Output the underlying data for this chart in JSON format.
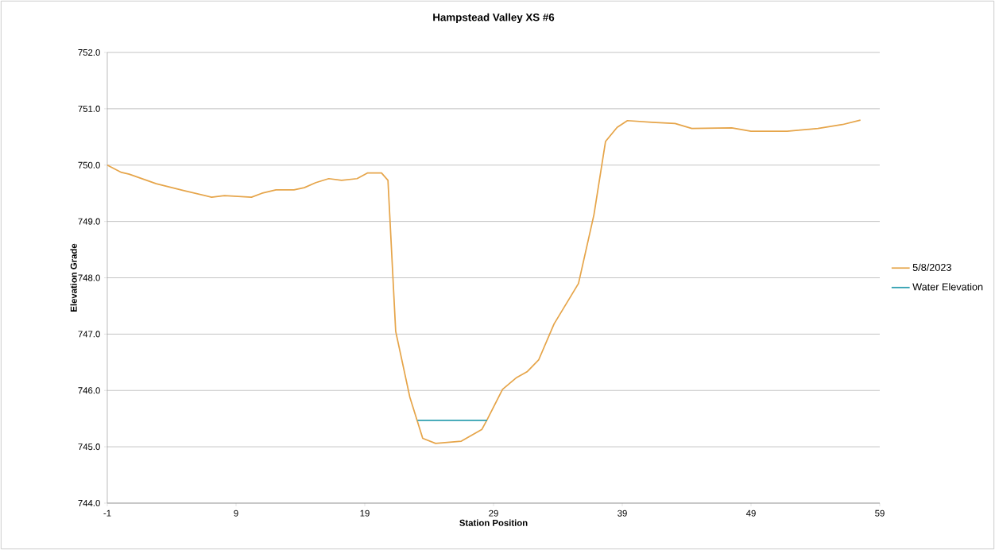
{
  "chart_data": {
    "type": "line",
    "title": "Hampstead Valley XS #6",
    "xlabel": "Station Position",
    "ylabel": "Elevation Grade",
    "xlim": [
      -1,
      59
    ],
    "xticks": [
      -1,
      9,
      19,
      29,
      39,
      49,
      59
    ],
    "ylim": [
      744,
      752
    ],
    "yticks": [
      {
        "value": 744,
        "label": "744.0"
      },
      {
        "value": 745,
        "label": "745.0"
      },
      {
        "value": 746,
        "label": "746.0"
      },
      {
        "value": 747,
        "label": "747.0"
      },
      {
        "value": 748,
        "label": "748.0"
      },
      {
        "value": 749,
        "label": "749.0"
      },
      {
        "value": 750,
        "label": "750.0"
      },
      {
        "value": 751,
        "label": "751.0"
      },
      {
        "value": 752,
        "label": "752.0"
      }
    ],
    "grid": "y",
    "legend": "right",
    "marker": "none",
    "series": [
      {
        "name": "5/8/2023",
        "color": "#e6a54a",
        "x": [
          -1,
          0.1,
          0.7,
          2.8,
          4.9,
          7.1,
          8.1,
          10.2,
          11.0,
          12.1,
          13.5,
          14.3,
          15.2,
          16.2,
          17.2,
          18.4,
          19.2,
          20.3,
          20.8,
          21.4,
          22.5,
          23.5,
          24.5,
          26.5,
          28.1,
          28.5,
          29.7,
          30.8,
          31.6,
          32.5,
          33.7,
          35.6,
          36.8,
          37.7,
          38.6,
          39.4,
          41.3,
          43.1,
          44.4,
          47.5,
          49.0,
          51.8,
          54.2,
          56.1,
          57.5
        ],
        "values": [
          750.0,
          749.87,
          749.84,
          749.67,
          749.55,
          749.43,
          749.46,
          749.43,
          749.5,
          749.56,
          749.56,
          749.6,
          749.69,
          749.76,
          749.73,
          749.76,
          749.86,
          749.86,
          749.73,
          747.05,
          745.88,
          745.15,
          745.06,
          745.1,
          745.31,
          745.48,
          746.02,
          746.23,
          746.33,
          746.54,
          747.18,
          747.9,
          749.12,
          750.42,
          750.67,
          750.79,
          750.76,
          750.74,
          750.65,
          750.66,
          750.6,
          750.6,
          750.65,
          750.72,
          750.8
        ]
      },
      {
        "name": "Water Elevation",
        "color": "#2e9fb0",
        "x": [
          23.1,
          28.5
        ],
        "values": [
          745.47,
          745.47
        ]
      }
    ]
  }
}
